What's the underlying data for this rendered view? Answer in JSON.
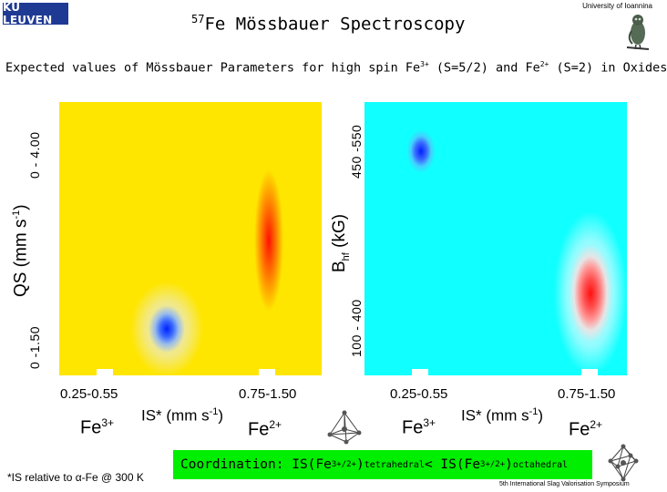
{
  "header": {
    "logo_text": "KU LEUVEN",
    "title_superscript": "57",
    "title_text": "Fe Mössbauer Spectroscopy",
    "institution": "University of Ioannina"
  },
  "subtitle": {
    "part1": "Expected values of Mössbauer Parameters for high spin Fe",
    "sup1": "3+",
    "part2": " (S=5/2) and Fe",
    "sup2": "2+",
    "part3": " (S=2) in Oxides"
  },
  "left_plot": {
    "y_axis": {
      "label_main": "QS (mm s",
      "label_sup": "-1",
      "label_end": ")",
      "range_low": "0 -1.50",
      "range_high": "0 - 4.00"
    },
    "x_ticks": [
      "0.25-0.55",
      "0.75-1.50"
    ],
    "x_label_main": "IS* (mm s",
    "x_label_sup": "-1",
    "x_label_end": ")",
    "ion_left": "Fe",
    "ion_left_sup": "3+",
    "ion_right": "Fe",
    "ion_right_sup": "2+",
    "colors": {
      "background": "#ffe600",
      "fe3": "#0020ff",
      "fe2": "#ff1000"
    }
  },
  "right_plot": {
    "y_axis": {
      "label_main": "B",
      "label_sub": "hf",
      "label_end": " (kG)",
      "range_low": "100 - 400",
      "range_high": "450 -550"
    },
    "x_ticks": [
      "0.25-0.55",
      "0.75-1.50"
    ],
    "x_label_main": "IS* (mm s",
    "x_label_sup": "-1",
    "x_label_end": ")",
    "ion_left": "Fe",
    "ion_left_sup": "3+",
    "ion_right": "Fe",
    "ion_right_sup": "2+",
    "colors": {
      "background": "#10ffff",
      "fe3": "#0020ff",
      "fe2": "#ff1010"
    }
  },
  "coordination": {
    "prefix": "Coordination: IS(Fe",
    "sup1": "3+/2+",
    "end1": ")",
    "sub1": "tetrahedral",
    "middle": "< IS(Fe",
    "sup2": "3+/2+",
    "end2": ")",
    "sub2": "octahedral",
    "color": "#00ee00"
  },
  "footnote": {
    "main": "*IS relative to α-Fe @ 300 K"
  },
  "symposium": "5th International Slag Valorisation Symposium",
  "icons": [
    "owl-icon",
    "tetrahedron-icon",
    "octahedron-icon"
  ]
}
